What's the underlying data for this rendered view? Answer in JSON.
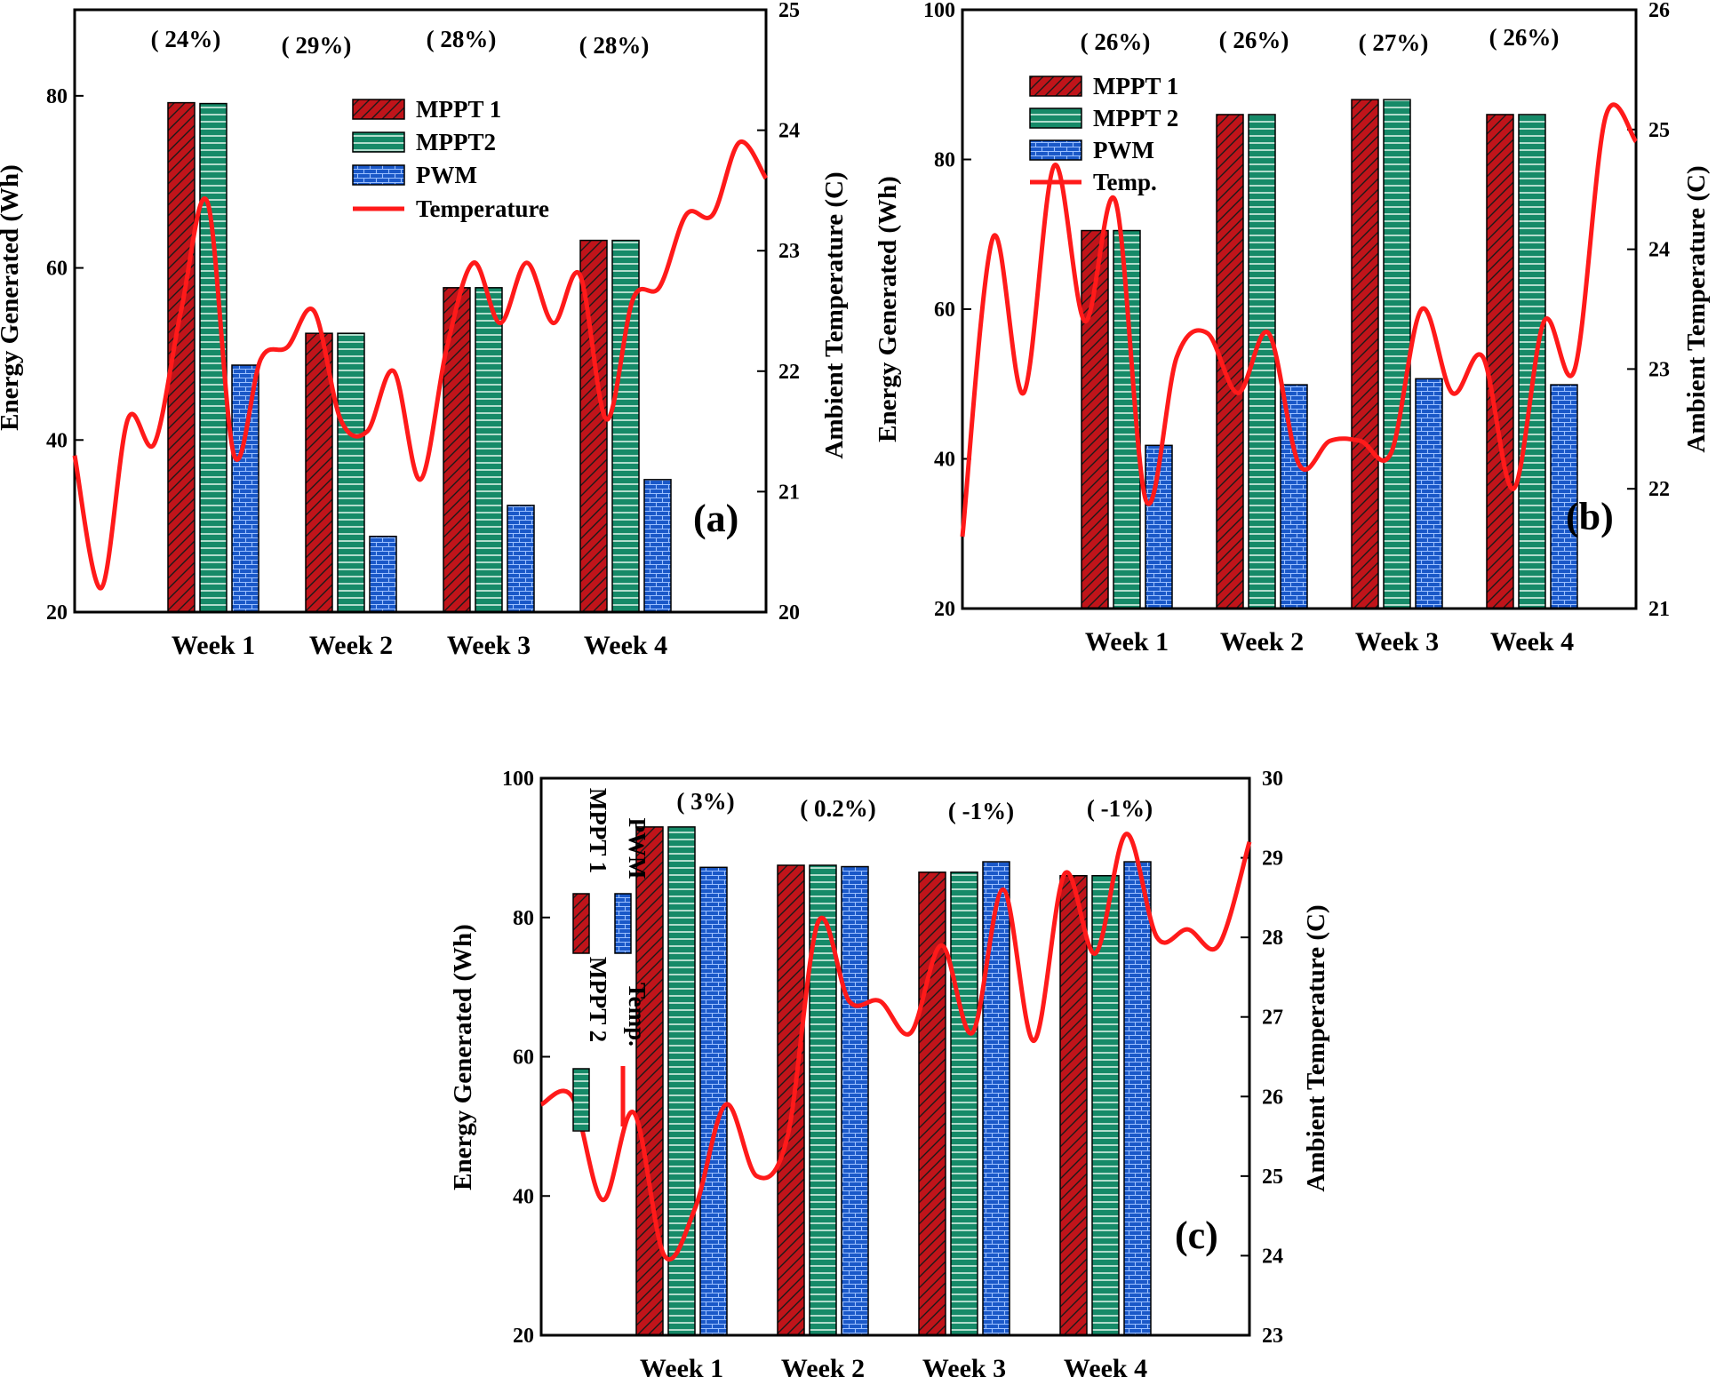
{
  "colors": {
    "mppt1": "#c0141a",
    "mppt2": "#168a68",
    "pwm": "#1a58c8",
    "temp": "#ff1a1a"
  },
  "chart_data": [
    {
      "panel": "(a)",
      "type": "bar",
      "categories": [
        "Week 1",
        "Week 2",
        "Week 3",
        "Week 4"
      ],
      "ylabel": "Energy Generated (Wh)",
      "y2label": "Ambient Temperature (C)",
      "ylim": [
        20,
        90
      ],
      "yticks": [
        20,
        40,
        60,
        80
      ],
      "y2lim": [
        20,
        25
      ],
      "y2ticks": [
        20,
        21,
        22,
        23,
        24,
        25
      ],
      "legend": [
        "MPPT 1",
        "MPPT2",
        "PWM",
        "Temperature"
      ],
      "percentages": [
        "( 24%)",
        "( 29%)",
        "( 28%)",
        "( 28%)"
      ],
      "series": [
        {
          "name": "MPPT 1",
          "values": [
            79.2,
            52.4,
            57.7,
            63.2
          ]
        },
        {
          "name": "MPPT2",
          "values": [
            79.1,
            52.4,
            57.7,
            63.2
          ]
        },
        {
          "name": "PWM",
          "values": [
            48.7,
            28.8,
            32.4,
            35.4
          ]
        }
      ],
      "temperature": [
        21.3,
        20.2,
        21.6,
        21.4,
        22.5,
        23.4,
        21.3,
        22.1,
        22.2,
        22.5,
        21.6,
        21.5,
        22.0,
        21.1,
        22.2,
        22.9,
        22.4,
        22.9,
        22.4,
        22.8,
        21.6,
        22.6,
        22.7,
        23.3,
        23.3,
        23.9,
        23.6
      ]
    },
    {
      "panel": "(b)",
      "type": "bar",
      "categories": [
        "Week 1",
        "Week 2",
        "Week 3",
        "Week 4"
      ],
      "ylabel": "Energy Generated (Wh)",
      "y2label": "Ambient Temperature (C)",
      "ylim": [
        20,
        100
      ],
      "yticks": [
        20,
        40,
        60,
        80,
        100
      ],
      "y2lim": [
        21,
        26
      ],
      "y2ticks": [
        21,
        22,
        23,
        24,
        25,
        26
      ],
      "legend": [
        "MPPT 1",
        "MPPT 2",
        "PWM",
        "Temp."
      ],
      "percentages": [
        "( 26%)",
        "( 26%)",
        "( 27%)",
        "( 26%)"
      ],
      "series": [
        {
          "name": "MPPT 1",
          "values": [
            70.5,
            86.0,
            88.0,
            86.0
          ]
        },
        {
          "name": "MPPT 2",
          "values": [
            70.5,
            86.0,
            88.0,
            86.0
          ]
        },
        {
          "name": "PWM",
          "values": [
            41.8,
            49.9,
            50.7,
            49.9
          ]
        }
      ],
      "temperature": [
        21.6,
        24.1,
        22.8,
        24.7,
        23.4,
        24.4,
        21.9,
        23.1,
        23.3,
        22.8,
        23.3,
        22.2,
        22.4,
        22.4,
        22.3,
        23.5,
        22.8,
        23.1,
        22.0,
        23.4,
        23.0,
        25.1,
        24.9
      ]
    },
    {
      "panel": "(c)",
      "type": "bar",
      "categories": [
        "Week 1",
        "Week 2",
        "Week 3",
        "Week 4"
      ],
      "ylabel": "Energy Generated (Wh)",
      "y2label": "Ambient Temperature (C)",
      "ylim": [
        20,
        100
      ],
      "yticks": [
        20,
        40,
        60,
        80,
        100
      ],
      "y2lim": [
        23,
        30
      ],
      "y2ticks": [
        23,
        24,
        25,
        26,
        27,
        28,
        29,
        30
      ],
      "legend": [
        "MPPT 1",
        "MPPT 2",
        "PWM",
        "Temp."
      ],
      "percentages": [
        "( 3%)",
        "( 0.2%)",
        "( -1%)",
        "( -1%)"
      ],
      "series": [
        {
          "name": "MPPT 1",
          "values": [
            93.0,
            87.5,
            86.5,
            86.0
          ]
        },
        {
          "name": "MPPT 2",
          "values": [
            93.0,
            87.5,
            86.5,
            86.0
          ]
        },
        {
          "name": "PWM",
          "values": [
            87.2,
            87.3,
            88.0,
            88.0
          ]
        }
      ],
      "temperature": [
        25.9,
        26.0,
        24.7,
        25.8,
        24.0,
        24.6,
        25.9,
        25.0,
        25.5,
        28.2,
        27.2,
        27.2,
        26.8,
        27.9,
        26.8,
        28.6,
        26.7,
        28.8,
        27.8,
        29.3,
        28.0,
        28.1,
        27.9,
        29.2
      ]
    }
  ]
}
